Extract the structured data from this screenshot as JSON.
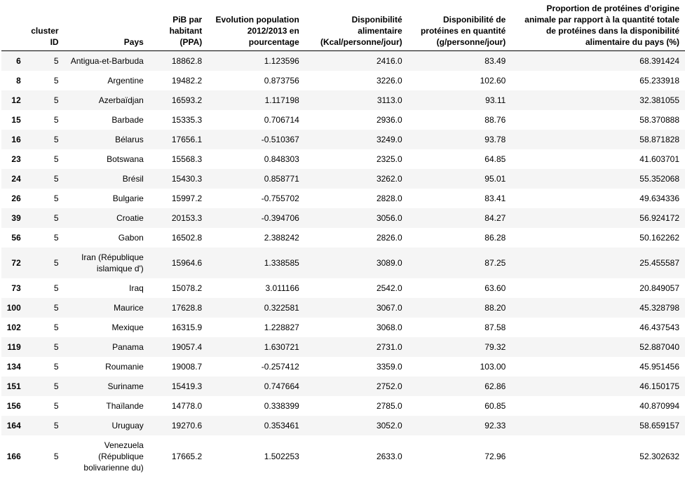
{
  "columns": [
    "",
    "cluster ID",
    "Pays",
    "PiB par habitant (PPA)",
    "Evolution population 2012/2013 en pourcentage",
    "Disponibilité alimentaire (Kcal/personne/jour)",
    "Disponibilité de protéines en quantité (g/personne/jour)",
    "Proportion de protéines d'origine animale par rapport à la quantité totale de protéines dans la disponibilité alimentaire du pays (%)"
  ],
  "rows": [
    {
      "index": "6",
      "cluster": "5",
      "pays": "Antigua-et-Barbuda",
      "pib": "18862.8",
      "evol": "1.123596",
      "kcal": "2416.0",
      "prot": "83.49",
      "prop": "68.391424"
    },
    {
      "index": "8",
      "cluster": "5",
      "pays": "Argentine",
      "pib": "19482.2",
      "evol": "0.873756",
      "kcal": "3226.0",
      "prot": "102.60",
      "prop": "65.233918"
    },
    {
      "index": "12",
      "cluster": "5",
      "pays": "Azerbaïdjan",
      "pib": "16593.2",
      "evol": "1.117198",
      "kcal": "3113.0",
      "prot": "93.11",
      "prop": "32.381055"
    },
    {
      "index": "15",
      "cluster": "5",
      "pays": "Barbade",
      "pib": "15335.3",
      "evol": "0.706714",
      "kcal": "2936.0",
      "prot": "88.76",
      "prop": "58.370888"
    },
    {
      "index": "16",
      "cluster": "5",
      "pays": "Bélarus",
      "pib": "17656.1",
      "evol": "-0.510367",
      "kcal": "3249.0",
      "prot": "93.78",
      "prop": "58.871828"
    },
    {
      "index": "23",
      "cluster": "5",
      "pays": "Botswana",
      "pib": "15568.3",
      "evol": "0.848303",
      "kcal": "2325.0",
      "prot": "64.85",
      "prop": "41.603701"
    },
    {
      "index": "24",
      "cluster": "5",
      "pays": "Brésil",
      "pib": "15430.3",
      "evol": "0.858771",
      "kcal": "3262.0",
      "prot": "95.01",
      "prop": "55.352068"
    },
    {
      "index": "26",
      "cluster": "5",
      "pays": "Bulgarie",
      "pib": "15997.2",
      "evol": "-0.755702",
      "kcal": "2828.0",
      "prot": "83.41",
      "prop": "49.634336"
    },
    {
      "index": "39",
      "cluster": "5",
      "pays": "Croatie",
      "pib": "20153.3",
      "evol": "-0.394706",
      "kcal": "3056.0",
      "prot": "84.27",
      "prop": "56.924172"
    },
    {
      "index": "56",
      "cluster": "5",
      "pays": "Gabon",
      "pib": "16502.8",
      "evol": "2.388242",
      "kcal": "2826.0",
      "prot": "86.28",
      "prop": "50.162262"
    },
    {
      "index": "72",
      "cluster": "5",
      "pays": "Iran (République islamique d')",
      "pib": "15964.6",
      "evol": "1.338585",
      "kcal": "3089.0",
      "prot": "87.25",
      "prop": "25.455587"
    },
    {
      "index": "73",
      "cluster": "5",
      "pays": "Iraq",
      "pib": "15078.2",
      "evol": "3.011166",
      "kcal": "2542.0",
      "prot": "63.60",
      "prop": "20.849057"
    },
    {
      "index": "100",
      "cluster": "5",
      "pays": "Maurice",
      "pib": "17628.8",
      "evol": "0.322581",
      "kcal": "3067.0",
      "prot": "88.20",
      "prop": "45.328798"
    },
    {
      "index": "102",
      "cluster": "5",
      "pays": "Mexique",
      "pib": "16315.9",
      "evol": "1.228827",
      "kcal": "3068.0",
      "prot": "87.58",
      "prop": "46.437543"
    },
    {
      "index": "119",
      "cluster": "5",
      "pays": "Panama",
      "pib": "19057.4",
      "evol": "1.630721",
      "kcal": "2731.0",
      "prot": "79.32",
      "prop": "52.887040"
    },
    {
      "index": "134",
      "cluster": "5",
      "pays": "Roumanie",
      "pib": "19008.7",
      "evol": "-0.257412",
      "kcal": "3359.0",
      "prot": "103.00",
      "prop": "45.951456"
    },
    {
      "index": "151",
      "cluster": "5",
      "pays": "Suriname",
      "pib": "15419.3",
      "evol": "0.747664",
      "kcal": "2752.0",
      "prot": "62.86",
      "prop": "46.150175"
    },
    {
      "index": "156",
      "cluster": "5",
      "pays": "Thaïlande",
      "pib": "14778.0",
      "evol": "0.338399",
      "kcal": "2785.0",
      "prot": "60.85",
      "prop": "40.870994"
    },
    {
      "index": "164",
      "cluster": "5",
      "pays": "Uruguay",
      "pib": "19270.6",
      "evol": "0.353461",
      "kcal": "3052.0",
      "prot": "92.33",
      "prop": "58.659157"
    },
    {
      "index": "166",
      "cluster": "5",
      "pays": "Venezuela (République bolivarienne du)",
      "pib": "17665.2",
      "evol": "1.502253",
      "kcal": "2633.0",
      "prot": "72.96",
      "prop": "52.302632"
    }
  ]
}
